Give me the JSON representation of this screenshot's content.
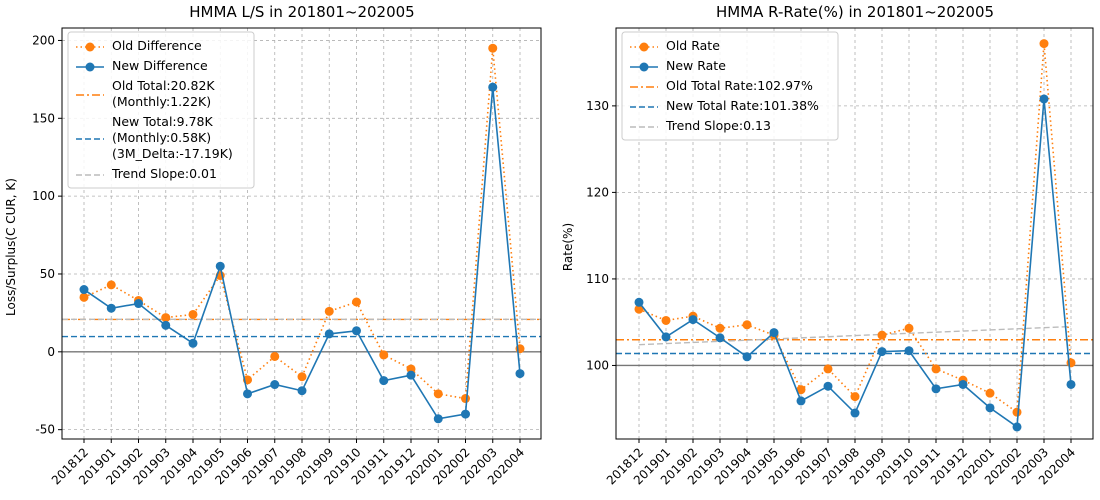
{
  "chart_data": [
    {
      "type": "line",
      "title": "HMMA L/S in 201801~202005",
      "xlabel": "",
      "ylabel": "Loss/Surplus(C CUR, K)",
      "categories": [
        "201812",
        "201901",
        "201902",
        "201903",
        "201904",
        "201905",
        "201906",
        "201907",
        "201908",
        "201909",
        "201910",
        "201911",
        "201912",
        "202001",
        "202002",
        "202003",
        "202004"
      ],
      "ylim": [
        -56,
        208
      ],
      "yticks": [
        -50,
        0,
        50,
        100,
        150,
        200
      ],
      "grid": true,
      "legend_position": "top-left",
      "series": [
        {
          "name": "Old Difference",
          "color": "#ff7f0e",
          "style": "dotted-marker",
          "values": [
            35,
            43,
            33,
            22,
            24,
            49,
            -18,
            -3,
            -16,
            26,
            32,
            -2,
            -11,
            -27,
            -30,
            195,
            2
          ]
        },
        {
          "name": "New Difference",
          "color": "#1f77b4",
          "style": "solid-marker",
          "values": [
            40,
            28,
            31,
            17,
            5.5,
            55,
            -27,
            -21,
            -25,
            11.5,
            13.5,
            -18.5,
            -15,
            -43,
            -40,
            170,
            -14
          ]
        }
      ],
      "reference_lines": [
        {
          "name": "Old Total:20.82K\n(Monthly:1.22K)",
          "value": 20.82,
          "color": "#ff7f0e",
          "style": "dashdot"
        },
        {
          "name": "New Total:9.78K\n(Monthly:0.58K)\n(3M_Delta:-17.19K)",
          "value": 9.78,
          "color": "#1f77b4",
          "style": "dashed"
        },
        {
          "name": "Trend Slope:0.01",
          "value": 20.9,
          "color": "#bbbbbb",
          "style": "dashed"
        },
        {
          "name": "",
          "value": 0,
          "color": "#777777",
          "style": "solid"
        }
      ],
      "legend": {
        "old": "Old Difference",
        "new": "New Difference",
        "old_total": [
          "Old Total:20.82K",
          "(Monthly:1.22K)"
        ],
        "new_total": [
          "New Total:9.78K",
          "(Monthly:0.58K)",
          "(3M_Delta:-17.19K)"
        ],
        "trend": "Trend Slope:0.01"
      }
    },
    {
      "type": "line",
      "title": "HMMA R-Rate(%) in 201801~202005",
      "xlabel": "",
      "ylabel": "Rate(%)",
      "categories": [
        "201812",
        "201901",
        "201902",
        "201903",
        "201904",
        "201905",
        "201906",
        "201907",
        "201908",
        "201909",
        "201910",
        "201911",
        "201912",
        "202001",
        "202002",
        "202003",
        "202004"
      ],
      "ylim": [
        91.5,
        139
      ],
      "yticks": [
        100,
        110,
        120,
        130
      ],
      "grid": true,
      "legend_position": "top-left",
      "series": [
        {
          "name": "Old Rate",
          "color": "#ff7f0e",
          "style": "dotted-marker",
          "values": [
            106.5,
            105.2,
            105.7,
            104.3,
            104.7,
            103.5,
            97.2,
            99.6,
            96.4,
            103.5,
            104.3,
            99.6,
            98.3,
            96.8,
            94.6,
            137.2,
            100.3
          ]
        },
        {
          "name": "New Rate",
          "color": "#1f77b4",
          "style": "solid-marker",
          "values": [
            107.3,
            103.3,
            105.3,
            103.2,
            101.0,
            103.8,
            95.9,
            97.6,
            94.5,
            101.6,
            101.7,
            97.3,
            97.8,
            95.1,
            92.9,
            130.8,
            97.8
          ]
        }
      ],
      "reference_lines": [
        {
          "name": "Old Total Rate:102.97%",
          "value": 102.97,
          "color": "#ff7f0e",
          "style": "dashdot"
        },
        {
          "name": "New Total Rate:101.38%",
          "value": 101.38,
          "color": "#1f77b4",
          "style": "dashed"
        },
        {
          "name": "Trend Slope:0.13",
          "from": 102.4,
          "to": 104.5,
          "color": "#bbbbbb",
          "style": "dashed"
        },
        {
          "name": "",
          "value": 100,
          "color": "#777777",
          "style": "solid"
        }
      ],
      "legend": {
        "old": "Old Rate",
        "new": "New Rate",
        "old_total": [
          "Old Total Rate:102.97%"
        ],
        "new_total": [
          "New Total Rate:101.38%"
        ],
        "trend": "Trend Slope:0.13"
      }
    }
  ]
}
